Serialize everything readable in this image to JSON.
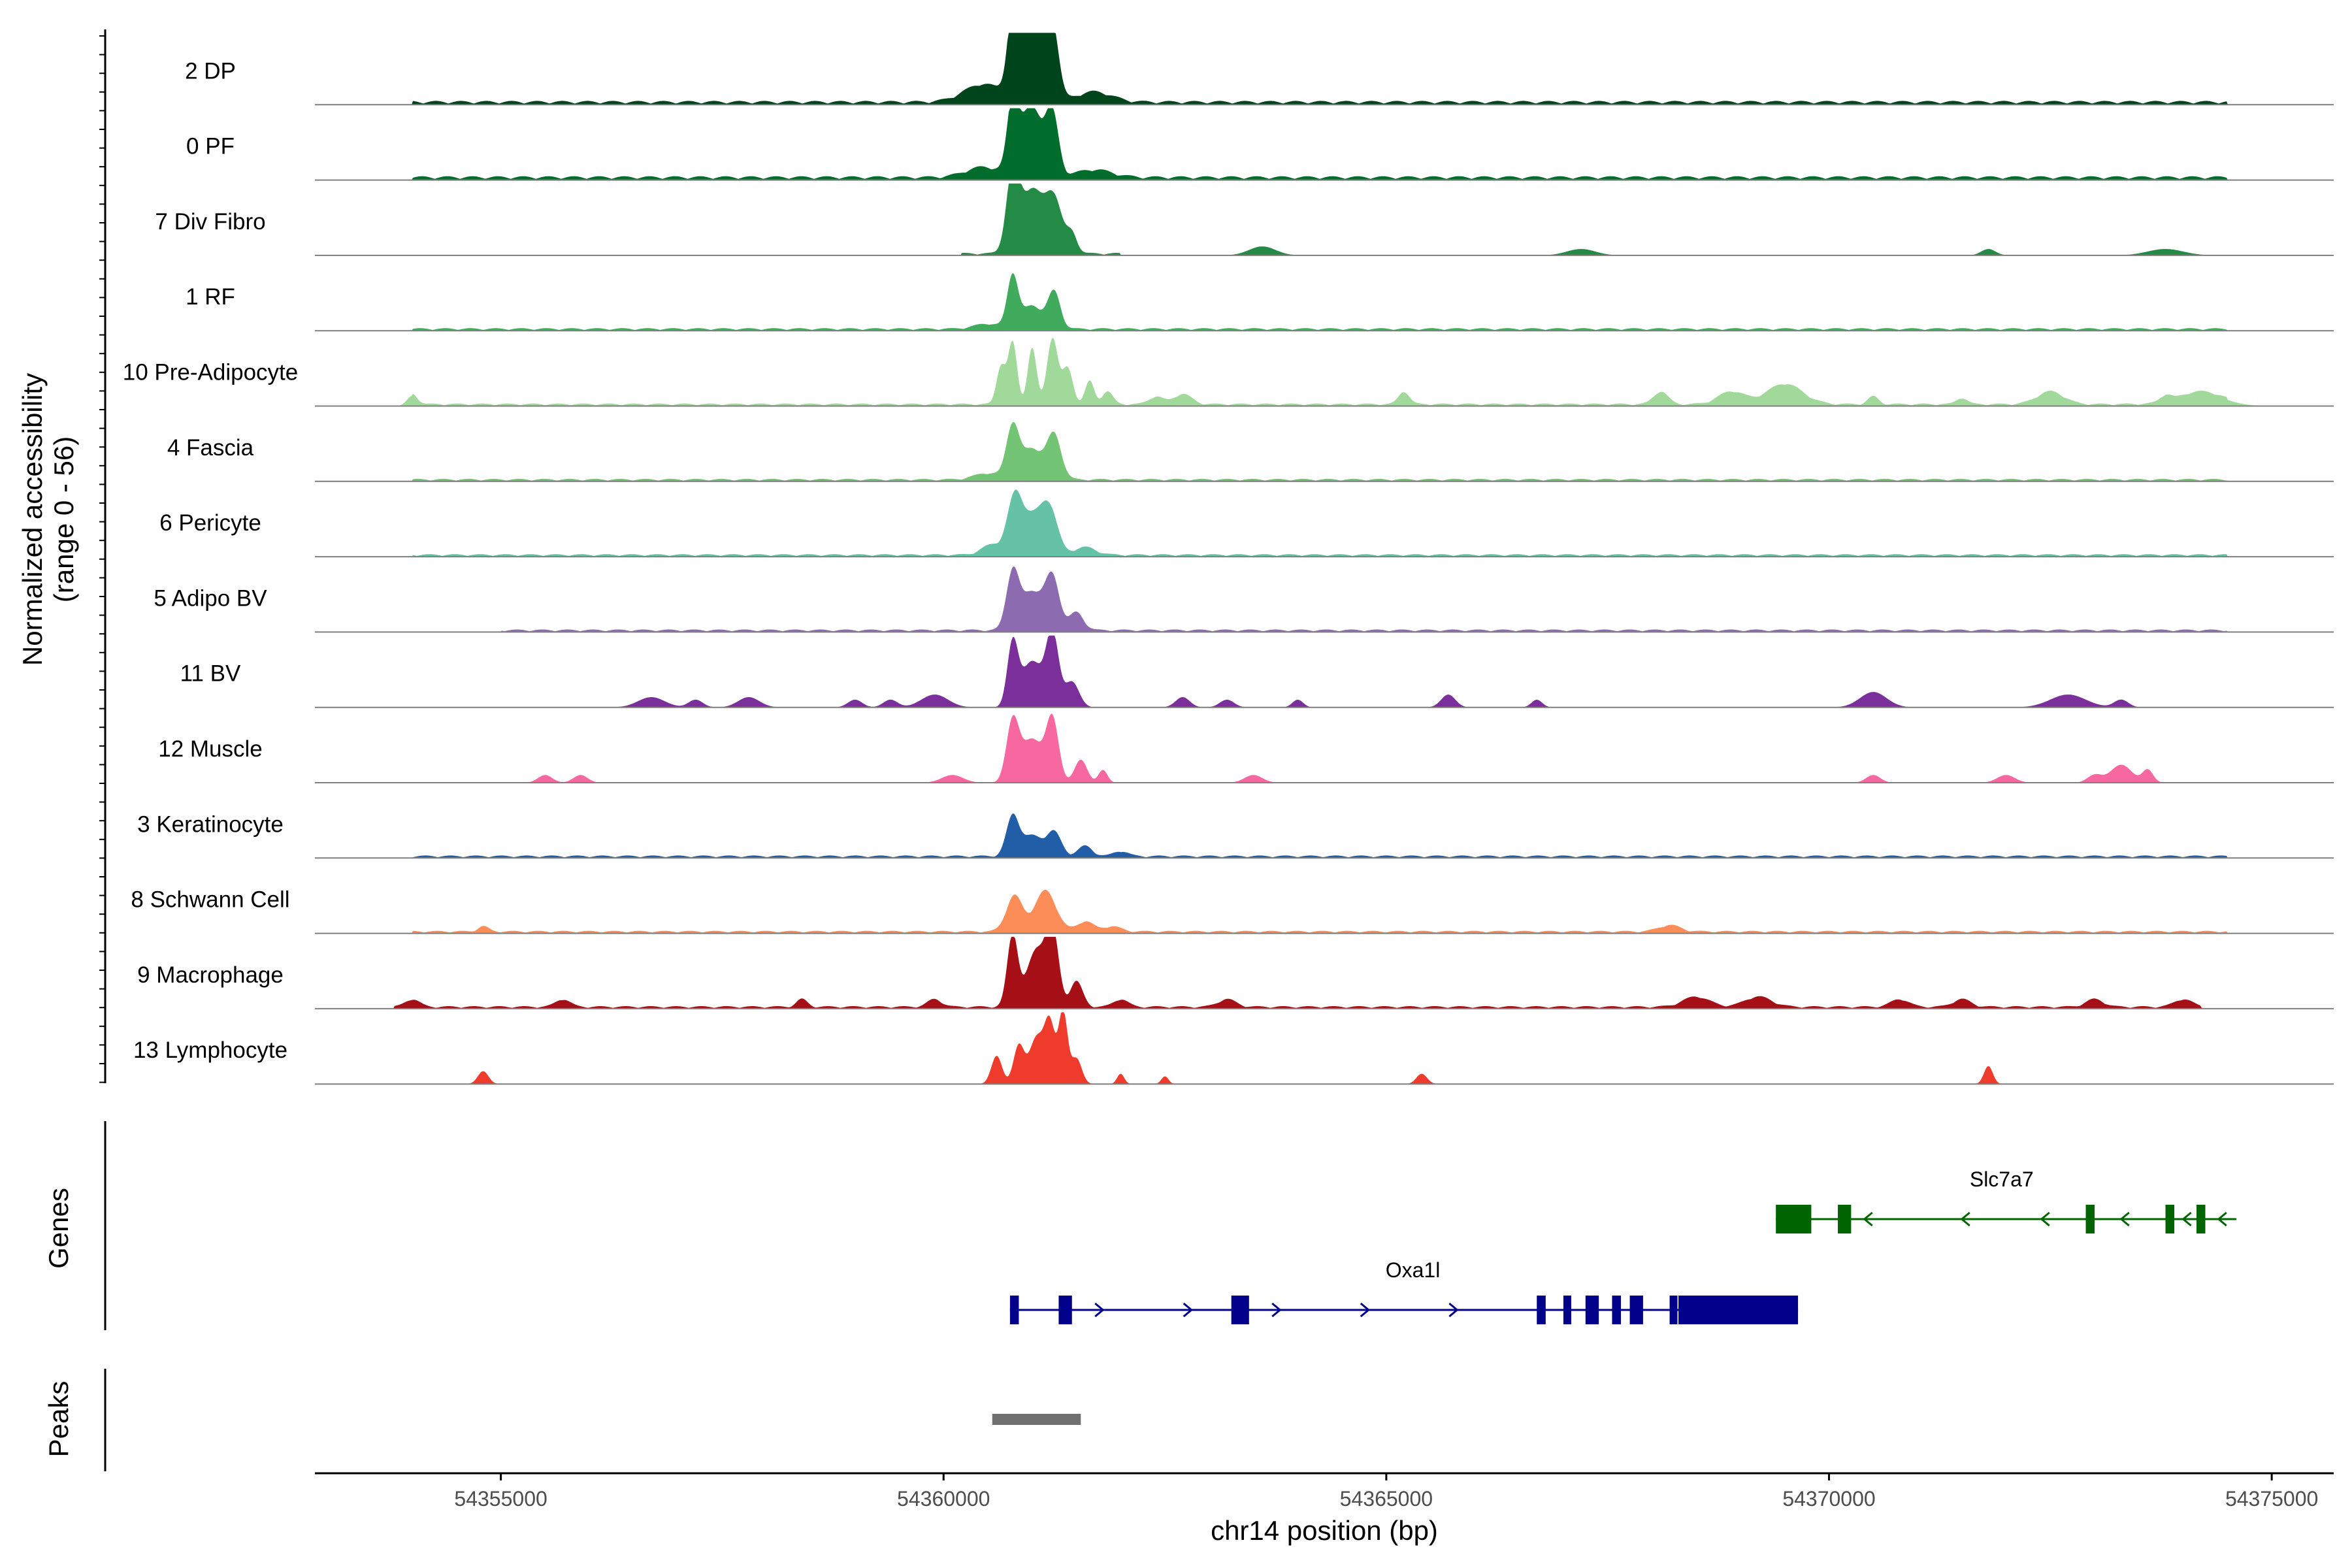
{
  "chart_data": {
    "type": "area",
    "title": "",
    "ylabel_line1": "Normalized accessibility",
    "ylabel_line2": "(range 0 - 56)",
    "xlabel": "chr14 position (bp)",
    "xlim": [
      54352900,
      54375700
    ],
    "ylim": [
      0,
      56
    ],
    "x_ticks": [
      54355000,
      54360000,
      54365000,
      54370000,
      54375000
    ],
    "x_tick_labels": [
      "54355000",
      "54360000",
      "54365000",
      "54370000",
      "54375000"
    ],
    "section_labels": {
      "genes": "Genes",
      "peaks": "Peaks"
    },
    "tracks": [
      {
        "name": "2 DP",
        "color": "#00441b",
        "peaks": [
          [
            54360780,
            56,
            60
          ],
          [
            54361230,
            54,
            70
          ],
          [
            54360950,
            40,
            120
          ],
          [
            54361050,
            30,
            120
          ],
          [
            54360450,
            14,
            220
          ],
          [
            54361700,
            8,
            200
          ]
        ],
        "noise": [
          [
            54354000,
            54374500,
            3
          ]
        ]
      },
      {
        "name": "0 PF",
        "color": "#006d2c",
        "peaks": [
          [
            54360780,
            52,
            60
          ],
          [
            54361230,
            44,
            70
          ],
          [
            54360950,
            34,
            120
          ],
          [
            54361050,
            26,
            120
          ],
          [
            54360450,
            8,
            200
          ],
          [
            54361700,
            6,
            200
          ]
        ],
        "noise": [
          [
            54354000,
            54374500,
            3
          ]
        ]
      },
      {
        "name": "7 Div Fibro",
        "color": "#238b45",
        "peaks": [
          [
            54360780,
            60,
            70
          ],
          [
            54361000,
            50,
            130
          ],
          [
            54361250,
            40,
            90
          ],
          [
            54361450,
            15,
            60
          ],
          [
            54363600,
            7,
            150
          ],
          [
            54367200,
            5,
            160
          ],
          [
            54371800,
            5,
            80
          ],
          [
            54373800,
            5,
            200
          ]
        ],
        "noise": [
          [
            54360200,
            54362000,
            2
          ]
        ]
      },
      {
        "name": "1 RF",
        "color": "#41ab5d",
        "peaks": [
          [
            54360780,
            40,
            60
          ],
          [
            54361250,
            28,
            70
          ],
          [
            54361000,
            18,
            120
          ],
          [
            54360500,
            4,
            150
          ]
        ],
        "noise": [
          [
            54354000,
            54374500,
            2
          ]
        ]
      },
      {
        "name": "10 Pre-Adipocyte",
        "color": "#a1d99b",
        "peaks": [
          [
            54360780,
            48,
            50
          ],
          [
            54361230,
            52,
            60
          ],
          [
            54361000,
            44,
            50
          ],
          [
            54360650,
            30,
            50
          ],
          [
            54361400,
            28,
            60
          ],
          [
            54361650,
            18,
            50
          ],
          [
            54361850,
            10,
            60
          ],
          [
            54354000,
            8,
            60
          ],
          [
            54362700,
            8,
            100
          ],
          [
            54362400,
            6,
            80
          ],
          [
            54365200,
            10,
            60
          ],
          [
            54368100,
            10,
            80
          ],
          [
            54368900,
            10,
            150
          ],
          [
            54369500,
            16,
            200
          ],
          [
            54372500,
            10,
            150
          ],
          [
            54374200,
            10,
            250
          ],
          [
            54370500,
            6,
            60
          ],
          [
            54371500,
            5,
            60
          ],
          [
            54373800,
            5,
            60
          ]
        ],
        "noise": [
          [
            54354000,
            54374500,
            2
          ]
        ]
      },
      {
        "name": "4 Fascia",
        "color": "#74c476",
        "peaks": [
          [
            54360780,
            40,
            70
          ],
          [
            54361250,
            34,
            80
          ],
          [
            54361000,
            24,
            120
          ],
          [
            54360500,
            5,
            150
          ]
        ],
        "noise": [
          [
            54354000,
            54374500,
            2
          ]
        ]
      },
      {
        "name": "6 Pericyte",
        "color": "#66c2a4",
        "peaks": [
          [
            54360800,
            38,
            80
          ],
          [
            54361200,
            30,
            90
          ],
          [
            54361000,
            30,
            140
          ],
          [
            54360550,
            8,
            120
          ],
          [
            54361600,
            6,
            120
          ]
        ],
        "noise": [
          [
            54354000,
            54374500,
            2
          ]
        ]
      },
      {
        "name": "5 Adipo BV",
        "color": "#8c6bb1",
        "peaks": [
          [
            54360780,
            44,
            70
          ],
          [
            54361230,
            40,
            80
          ],
          [
            54361000,
            30,
            120
          ],
          [
            54361500,
            14,
            80
          ]
        ],
        "noise": [
          [
            54355000,
            54374500,
            2
          ]
        ]
      },
      {
        "name": "11 BV",
        "color": "#7a2f9a",
        "peaks": [
          [
            54360780,
            48,
            60
          ],
          [
            54361230,
            56,
            70
          ],
          [
            54361000,
            36,
            120
          ],
          [
            54361450,
            20,
            80
          ],
          [
            54356700,
            8,
            150
          ],
          [
            54357200,
            6,
            80
          ],
          [
            54357800,
            8,
            120
          ],
          [
            54359000,
            6,
            80
          ],
          [
            54359400,
            6,
            80
          ],
          [
            54359900,
            10,
            150
          ],
          [
            54362700,
            8,
            80
          ],
          [
            54363200,
            6,
            80
          ],
          [
            54364000,
            6,
            60
          ],
          [
            54365700,
            10,
            80
          ],
          [
            54366700,
            6,
            60
          ],
          [
            54370500,
            12,
            150
          ],
          [
            54372700,
            10,
            200
          ],
          [
            54373300,
            6,
            80
          ]
        ],
        "noise": []
      },
      {
        "name": "12 Muscle",
        "color": "#f768a1",
        "peaks": [
          [
            54360780,
            46,
            70
          ],
          [
            54361230,
            48,
            70
          ],
          [
            54361000,
            34,
            120
          ],
          [
            54361550,
            18,
            70
          ],
          [
            54361800,
            10,
            50
          ],
          [
            54355500,
            6,
            80
          ],
          [
            54355900,
            6,
            80
          ],
          [
            54360100,
            6,
            120
          ],
          [
            54363500,
            6,
            100
          ],
          [
            54370500,
            6,
            80
          ],
          [
            54372000,
            6,
            100
          ],
          [
            54373000,
            6,
            80
          ],
          [
            54373300,
            14,
            120
          ],
          [
            54373600,
            10,
            60
          ]
        ],
        "noise": []
      },
      {
        "name": "3 Keratinocyte",
        "color": "#225ea8",
        "peaks": [
          [
            54360780,
            30,
            70
          ],
          [
            54361250,
            18,
            80
          ],
          [
            54361000,
            16,
            120
          ],
          [
            54361600,
            8,
            80
          ],
          [
            54362000,
            4,
            80
          ]
        ],
        "noise": [
          [
            54354000,
            54374500,
            2
          ]
        ]
      },
      {
        "name": "8 Schwann Cell",
        "color": "#fc8d59",
        "peaks": [
          [
            54360800,
            28,
            90
          ],
          [
            54361150,
            32,
            120
          ],
          [
            54361600,
            8,
            90
          ],
          [
            54361900,
            4,
            100
          ],
          [
            54354800,
            4,
            60
          ],
          [
            54368200,
            5,
            120
          ]
        ],
        "noise": [
          [
            54354000,
            54374500,
            2
          ]
        ]
      },
      {
        "name": "9 Macrophage",
        "color": "#a50f15",
        "peaks": [
          [
            54360780,
            56,
            60
          ],
          [
            54361230,
            56,
            70
          ],
          [
            54361050,
            44,
            110
          ],
          [
            54361500,
            20,
            70
          ],
          [
            54362000,
            6,
            80
          ],
          [
            54354000,
            6,
            80
          ],
          [
            54355700,
            6,
            80
          ],
          [
            54358400,
            6,
            60
          ],
          [
            54359900,
            6,
            80
          ],
          [
            54363200,
            6,
            100
          ],
          [
            54368500,
            8,
            150
          ],
          [
            54369200,
            8,
            150
          ],
          [
            54370800,
            6,
            100
          ],
          [
            54371500,
            6,
            100
          ],
          [
            54373000,
            6,
            100
          ],
          [
            54374000,
            6,
            100
          ]
        ],
        "noise": [
          [
            54353800,
            54374200,
            2
          ]
        ]
      },
      {
        "name": "13 Lymphocyte",
        "color": "#ef3b2c",
        "peaks": [
          [
            54360600,
            22,
            60
          ],
          [
            54360850,
            30,
            60
          ],
          [
            54361200,
            46,
            60
          ],
          [
            54361350,
            56,
            50
          ],
          [
            54361050,
            36,
            80
          ],
          [
            54361500,
            20,
            60
          ],
          [
            54354800,
            10,
            60
          ],
          [
            54362000,
            8,
            40
          ],
          [
            54362500,
            6,
            40
          ],
          [
            54365400,
            8,
            60
          ],
          [
            54371800,
            14,
            50
          ]
        ],
        "noise": []
      }
    ],
    "genes": [
      {
        "name": "Slc7a7",
        "strand": "-",
        "start": 54369400,
        "end": 54374600,
        "color": "#006400",
        "exons": [
          [
            54369400,
            54369800,
            "utr"
          ],
          [
            54370100,
            54370250,
            "cds"
          ],
          [
            54372900,
            54373000,
            "cds"
          ],
          [
            54373800,
            54373900,
            "cds"
          ],
          [
            54374150,
            54374250,
            "cds"
          ]
        ],
        "arrows": [
          54370400,
          54371500,
          54372400,
          54373300,
          54374000,
          54374400
        ]
      },
      {
        "name": "Oxa1l",
        "strand": "+",
        "start": 54360750,
        "end": 54369650,
        "color": "#00008b",
        "exons": [
          [
            54360750,
            54360850,
            "cds"
          ],
          [
            54361300,
            54361450,
            "cds"
          ],
          [
            54363250,
            54363450,
            "cds"
          ],
          [
            54366700,
            54366800,
            "cds"
          ],
          [
            54367000,
            54367070,
            "cds"
          ],
          [
            54367250,
            54367400,
            "cds"
          ],
          [
            54367550,
            54367650,
            "cds"
          ],
          [
            54367750,
            54367900,
            "cds"
          ],
          [
            54368200,
            54368280,
            "cds"
          ],
          [
            54368300,
            54369650,
            "utr"
          ]
        ],
        "arrows": [
          54361800,
          54362800,
          54363800,
          54364800,
          54365800
        ]
      }
    ],
    "peaks": [
      [
        54360550,
        54361550
      ]
    ],
    "peak_color": "#707070"
  }
}
